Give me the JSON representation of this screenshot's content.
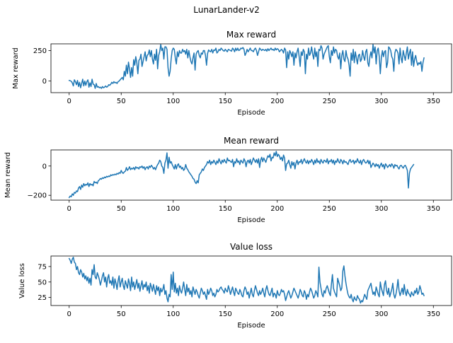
{
  "figure_title": "LunarLander-v2",
  "colors": {
    "line": "#1f77b4",
    "axis": "#000000",
    "background": "#ffffff"
  },
  "chart_data": [
    {
      "type": "line",
      "title": "Max reward",
      "xlabel": "Episode",
      "ylabel": "Max reward",
      "xlim": [
        -17.5,
        367.5
      ],
      "ylim": [
        -95,
        305
      ],
      "xticks": [
        0,
        50,
        100,
        150,
        200,
        250,
        300,
        350
      ],
      "yticks": [
        0,
        250
      ],
      "grid": false,
      "series": [
        {
          "x_start": 0,
          "x_step": 1,
          "values": [
            5,
            3,
            -2,
            -15,
            -40,
            10,
            -5,
            -30,
            5,
            -45,
            -10,
            -55,
            -20,
            15,
            -40,
            0,
            -35,
            -5,
            10,
            -50,
            -15,
            -45,
            15,
            -25,
            -30,
            -60,
            -20,
            -50,
            -45,
            -55,
            -50,
            -60,
            -45,
            -55,
            -50,
            -40,
            -50,
            -45,
            -30,
            -35,
            -25,
            -10,
            -20,
            -5,
            -15,
            -10,
            -20,
            -5,
            0,
            10,
            20,
            30,
            10,
            80,
            40,
            130,
            60,
            155,
            100,
            30,
            110,
            40,
            175,
            130,
            200,
            150,
            60,
            170,
            180,
            220,
            120,
            160,
            200,
            240,
            165,
            210,
            220,
            255,
            200,
            250,
            180,
            140,
            220,
            170,
            260,
            100,
            210,
            240,
            300,
            250,
            270,
            180,
            280,
            280,
            260,
            110,
            40,
            80,
            180,
            250,
            270,
            260,
            190,
            140,
            240,
            200,
            250,
            230,
            230,
            260,
            240,
            250,
            220,
            260,
            190,
            250,
            200,
            160,
            140,
            190,
            230,
            90,
            220,
            240,
            250,
            210,
            190,
            230,
            220,
            250,
            250,
            210,
            130,
            225,
            255,
            245,
            240,
            260,
            230,
            255,
            250,
            270,
            230,
            240,
            260,
            250,
            270,
            260,
            250,
            245,
            260,
            250,
            240,
            260,
            255,
            250,
            245,
            270,
            260,
            240,
            270,
            250,
            270,
            250,
            255,
            270,
            265,
            275,
            260,
            210,
            230,
            260,
            240,
            255,
            270,
            250,
            250,
            240,
            260,
            270,
            250,
            210,
            240,
            270,
            260,
            250,
            260,
            255,
            250,
            260,
            245,
            265,
            250,
            260,
            270,
            255,
            260,
            250,
            270,
            255,
            265,
            260,
            240,
            250,
            260,
            250,
            230,
            270,
            255,
            110,
            240,
            180,
            250,
            230,
            200,
            240,
            130,
            230,
            190,
            240,
            270,
            200,
            120,
            240,
            210,
            260,
            240,
            60,
            220,
            180,
            270,
            210,
            230,
            280,
            220,
            180,
            270,
            200,
            240,
            120,
            260,
            250,
            290,
            270,
            180,
            220,
            240,
            260,
            280,
            290,
            200,
            150,
            250,
            210,
            280,
            230,
            260,
            250,
            200,
            180,
            230,
            100,
            210,
            250,
            180,
            160,
            250,
            200,
            180,
            130,
            40,
            230,
            170,
            260,
            150,
            240,
            190,
            140,
            210,
            220,
            160,
            180,
            250,
            200,
            170,
            240,
            260,
            150,
            120,
            200,
            240,
            190,
            300,
            230,
            280,
            140,
            250,
            270,
            200,
            60,
            190,
            250,
            200,
            240,
            250,
            110,
            150,
            280,
            270,
            250,
            200,
            180,
            80,
            230,
            260,
            250,
            230,
            140,
            270,
            190,
            150,
            250,
            210,
            170,
            230,
            280,
            180,
            230,
            260,
            130,
            240,
            120,
            180,
            210,
            160,
            130,
            150,
            140,
            160,
            80,
            150,
            190
          ]
        }
      ]
    },
    {
      "type": "line",
      "title": "Mean reward",
      "xlabel": "Episode",
      "ylabel": "Mean reward",
      "xlim": [
        -17.5,
        367.5
      ],
      "ylim": [
        -233,
        110
      ],
      "xticks": [
        0,
        50,
        100,
        150,
        200,
        250,
        300,
        350
      ],
      "yticks": [
        -200,
        0
      ],
      "grid": false,
      "series": [
        {
          "x_start": 0,
          "x_step": 1,
          "values": [
            -215,
            -205,
            -210,
            -190,
            -200,
            -180,
            -185,
            -170,
            -175,
            -150,
            -140,
            -160,
            -130,
            -145,
            -120,
            -135,
            -125,
            -130,
            -115,
            -140,
            -120,
            -130,
            -125,
            -135,
            -105,
            -115,
            -110,
            -120,
            -100,
            -95,
            -85,
            -90,
            -80,
            -85,
            -75,
            -80,
            -70,
            -75,
            -68,
            -72,
            -60,
            -65,
            -58,
            -62,
            -55,
            -60,
            -50,
            -55,
            -45,
            -50,
            -30,
            -45,
            -50,
            -40,
            -35,
            -10,
            -30,
            -20,
            -5,
            -25,
            -15,
            -20,
            -10,
            -25,
            -5,
            -15,
            -10,
            -20,
            -5,
            -10,
            0,
            -15,
            -5,
            -25,
            -10,
            -5,
            -20,
            0,
            -10,
            5,
            -5,
            -20,
            -10,
            -25,
            -5,
            10,
            20,
            40,
            30,
            0,
            -10,
            -50,
            20,
            40,
            90,
            -15,
            60,
            20,
            30,
            10,
            -5,
            -20,
            10,
            -20,
            5,
            15,
            -10,
            0,
            -20,
            -10,
            -30,
            -20,
            10,
            -15,
            -25,
            -40,
            -50,
            -60,
            -70,
            -85,
            -90,
            -110,
            -120,
            -100,
            -115,
            -60,
            -50,
            -40,
            -20,
            -30,
            -10,
            0,
            10,
            30,
            20,
            40,
            10,
            30,
            20,
            40,
            25,
            10,
            35,
            20,
            50,
            30,
            15,
            40,
            25,
            45,
            30,
            20,
            55,
            35,
            40,
            30,
            25,
            45,
            -5,
            30,
            20,
            50,
            25,
            35,
            10,
            40,
            30,
            20,
            50,
            35,
            -5,
            30,
            40,
            20,
            45,
            10,
            30,
            55,
            40,
            25,
            45,
            20,
            50,
            -10,
            40,
            60,
            30,
            55,
            40,
            25,
            50,
            70,
            60,
            80,
            35,
            60,
            55,
            90,
            70,
            100,
            65,
            80,
            70,
            45,
            60,
            35,
            75,
            55,
            -30,
            15,
            20,
            40,
            10,
            -15,
            30,
            5,
            25,
            -20,
            20,
            40,
            10,
            30,
            25,
            45,
            15,
            35,
            50,
            30,
            20,
            40,
            15,
            35,
            25,
            45,
            30,
            10,
            40,
            20,
            50,
            25,
            35,
            15,
            45,
            30,
            20,
            40,
            35,
            25,
            50,
            15,
            35,
            30,
            45,
            20,
            40,
            10,
            35,
            25,
            50,
            30,
            20,
            45,
            35,
            15,
            40,
            25,
            30,
            20,
            10,
            35,
            45,
            25,
            30,
            40,
            15,
            35,
            25,
            50,
            30,
            20,
            40,
            10,
            35,
            45,
            30,
            20,
            25,
            40,
            15,
            35,
            -10,
            5,
            20,
            10,
            -5,
            15,
            0,
            10,
            -15,
            5,
            20,
            -5,
            10,
            -20,
            15,
            5,
            -10,
            0,
            10,
            -5,
            15,
            5,
            -15,
            10,
            0,
            5,
            -10,
            -20,
            0,
            5,
            -5,
            -15,
            0,
            5,
            -10,
            -30,
            -150,
            -50,
            -20,
            -10,
            0,
            10
          ]
        }
      ]
    },
    {
      "type": "line",
      "title": "Value loss",
      "xlabel": "Episode",
      "ylabel": "Value loss",
      "xlim": [
        -17.5,
        367.5
      ],
      "ylim": [
        12,
        92
      ],
      "xticks": [
        0,
        50,
        100,
        150,
        200,
        250,
        300,
        350
      ],
      "yticks": [
        25,
        50,
        75
      ],
      "grid": false,
      "series": [
        {
          "x_start": 0,
          "x_step": 1,
          "values": [
            88,
            85,
            80,
            87,
            90,
            82,
            80,
            70,
            75,
            65,
            62,
            70,
            66,
            58,
            64,
            55,
            60,
            52,
            58,
            48,
            56,
            45,
            70,
            62,
            78,
            58,
            55,
            65,
            60,
            54,
            45,
            52,
            60,
            65,
            50,
            58,
            42,
            56,
            62,
            48,
            52,
            45,
            58,
            40,
            55,
            48,
            38,
            52,
            60,
            42,
            50,
            56,
            44,
            38,
            52,
            46,
            40,
            55,
            48,
            36,
            58,
            42,
            50,
            38,
            46,
            54,
            40,
            48,
            35,
            44,
            52,
            38,
            46,
            42,
            50,
            36,
            44,
            32,
            48,
            42,
            35,
            46,
            38,
            30,
            44,
            36,
            42,
            28,
            40,
            34,
            38,
            46,
            30,
            36,
            24,
            18,
            30,
            26,
            62,
            38,
            66,
            34,
            48,
            32,
            40,
            28,
            44,
            36,
            32,
            40,
            50,
            38,
            28,
            46,
            34,
            40,
            30,
            36,
            26,
            42,
            36,
            30,
            38,
            34,
            28,
            24,
            32,
            40,
            36,
            30,
            34,
            28,
            22,
            38,
            30,
            34,
            40,
            36,
            28,
            32,
            26,
            30,
            38,
            34,
            36,
            40,
            42,
            38,
            36,
            32,
            40,
            36,
            34,
            44,
            38,
            30,
            36,
            42,
            34,
            28,
            40,
            36,
            32,
            30,
            38,
            34,
            28,
            26,
            36,
            42,
            38,
            30,
            34,
            24,
            32,
            40,
            30,
            26,
            36,
            44,
            38,
            32,
            28,
            36,
            30,
            34,
            40,
            32,
            26,
            38,
            44,
            36,
            30,
            28,
            34,
            40,
            26,
            32,
            30,
            24,
            36,
            30,
            28,
            32,
            38,
            34,
            36,
            30,
            20,
            26,
            32,
            36,
            30,
            24,
            28,
            34,
            40,
            36,
            32,
            28,
            24,
            30,
            38,
            34,
            28,
            26,
            36,
            32,
            22,
            30,
            26,
            34,
            40,
            36,
            30,
            24,
            28,
            36,
            32,
            26,
            74,
            50,
            40,
            30,
            26,
            36,
            32,
            40,
            44,
            38,
            32,
            28,
            46,
            62,
            40,
            34,
            30,
            26,
            56,
            50,
            44,
            36,
            40,
            68,
            76,
            60,
            48,
            38,
            30,
            26,
            24,
            30,
            22,
            18,
            26,
            22,
            20,
            28,
            24,
            22,
            16,
            20,
            18,
            24,
            30,
            26,
            22,
            36,
            40,
            44,
            48,
            38,
            30,
            34,
            28,
            42,
            36,
            30,
            26,
            50,
            40,
            34,
            28,
            46,
            52,
            36,
            30,
            40,
            26,
            32,
            38,
            48,
            30,
            24,
            30,
            40,
            54,
            36,
            28,
            34,
            40,
            30,
            46,
            34,
            28,
            38,
            32,
            30,
            26,
            34,
            30,
            28,
            36,
            32,
            40,
            30,
            34,
            44,
            38,
            30,
            32,
            28
          ]
        }
      ]
    }
  ]
}
